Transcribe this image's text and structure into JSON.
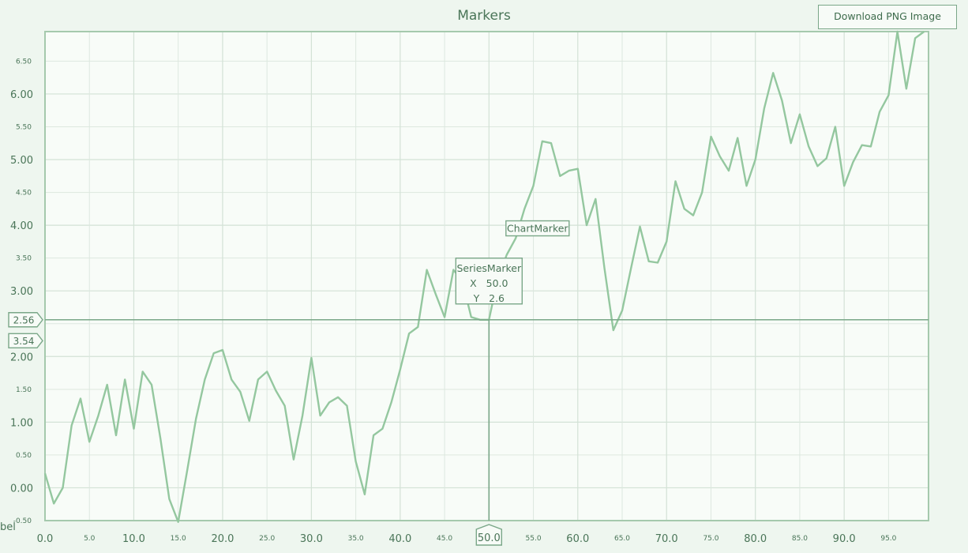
{
  "toolbar": {
    "download_label": "Download PNG Image"
  },
  "colors": {
    "background": "#eef6ef",
    "series": "#94c79f",
    "grid": "#dde8df",
    "axis": "#a5c9ad",
    "marker": "#7aa788",
    "text": "#4a7558"
  },
  "chart_data": {
    "type": "line",
    "title": "Markers",
    "xlabel": "",
    "ylabel": "",
    "xlim": [
      0,
      99.5
    ],
    "ylim": [
      -0.5,
      6.95
    ],
    "grid": true,
    "x_major_ticks": [
      "0.0",
      "10.0",
      "20.0",
      "30.0",
      "40.0",
      "50.0",
      "60.0",
      "70.0",
      "80.0",
      "90.0"
    ],
    "x_minor_ticks": [
      "5.0",
      "15.0",
      "25.0",
      "35.0",
      "45.0",
      "55.0",
      "65.0",
      "75.0",
      "85.0",
      "95.0"
    ],
    "y_major_ticks": [
      "0.00",
      "1.00",
      "2.00",
      "3.00",
      "4.00",
      "5.00",
      "6.00"
    ],
    "y_minor_ticks": [
      "-0.50",
      "0.50",
      "1.50",
      "2.50",
      "3.50",
      "4.50",
      "5.50",
      "6.50"
    ],
    "y_axis_cut_label": "bel",
    "series": [
      {
        "x": [
          0,
          1,
          2,
          3,
          4,
          5,
          6,
          7,
          8,
          9,
          10,
          11,
          12,
          13,
          14,
          15,
          16,
          17,
          18,
          19,
          20,
          21,
          22,
          23,
          24,
          25,
          26,
          27,
          28,
          29,
          30,
          31,
          32,
          33,
          34,
          35,
          36,
          37,
          38,
          39,
          40,
          41,
          42,
          43,
          44,
          45,
          46,
          47,
          48,
          49,
          50,
          51,
          52,
          53,
          54,
          55,
          56,
          57,
          58,
          59,
          60,
          61,
          62,
          63,
          64,
          65,
          66,
          67,
          68,
          69,
          70,
          71,
          72,
          73,
          74,
          75,
          76,
          77,
          78,
          79,
          80,
          81,
          82,
          83,
          84,
          85,
          86,
          87,
          88,
          89,
          90,
          91,
          92,
          93,
          94,
          95,
          96,
          97,
          98,
          99
        ],
        "values": [
          0.22,
          -0.24,
          0.0,
          0.95,
          1.36,
          0.7,
          1.1,
          1.57,
          0.8,
          1.65,
          0.9,
          1.77,
          1.57,
          0.75,
          -0.17,
          -0.52,
          0.25,
          1.05,
          1.65,
          2.05,
          2.1,
          1.65,
          1.46,
          1.02,
          1.65,
          1.77,
          1.48,
          1.25,
          0.43,
          1.1,
          1.98,
          1.1,
          1.3,
          1.38,
          1.25,
          0.4,
          -0.1,
          0.8,
          0.9,
          1.3,
          1.8,
          2.35,
          2.45,
          3.32,
          2.95,
          2.6,
          3.32,
          3.15,
          2.6,
          2.56,
          2.56,
          3.2,
          3.55,
          3.8,
          4.25,
          4.6,
          5.28,
          5.25,
          4.75,
          4.83,
          4.86,
          4.0,
          4.4,
          3.35,
          2.4,
          2.7,
          3.35,
          3.98,
          3.45,
          3.43,
          3.75,
          4.67,
          4.25,
          4.15,
          4.5,
          5.35,
          5.05,
          4.83,
          5.33,
          4.6,
          5.0,
          5.78,
          6.32,
          5.9,
          5.25,
          5.69,
          5.2,
          4.9,
          5.02,
          5.5,
          4.6,
          4.96,
          5.22,
          5.2,
          5.73,
          5.98,
          6.95,
          6.08,
          6.85,
          6.95
        ]
      }
    ],
    "series_marker": {
      "x": 50.0,
      "y": 2.56,
      "title": "SeriesMarker",
      "x_line": "X   50.0",
      "y_line": "Y   2.6",
      "x_axis_label": "50.0",
      "y_axis_label": "2.56"
    },
    "chart_marker": {
      "x": 52.0,
      "y": 3.73,
      "label": "ChartMarker"
    },
    "y_axis_labels": [
      {
        "y": 2.24,
        "text": "3.54"
      }
    ]
  }
}
